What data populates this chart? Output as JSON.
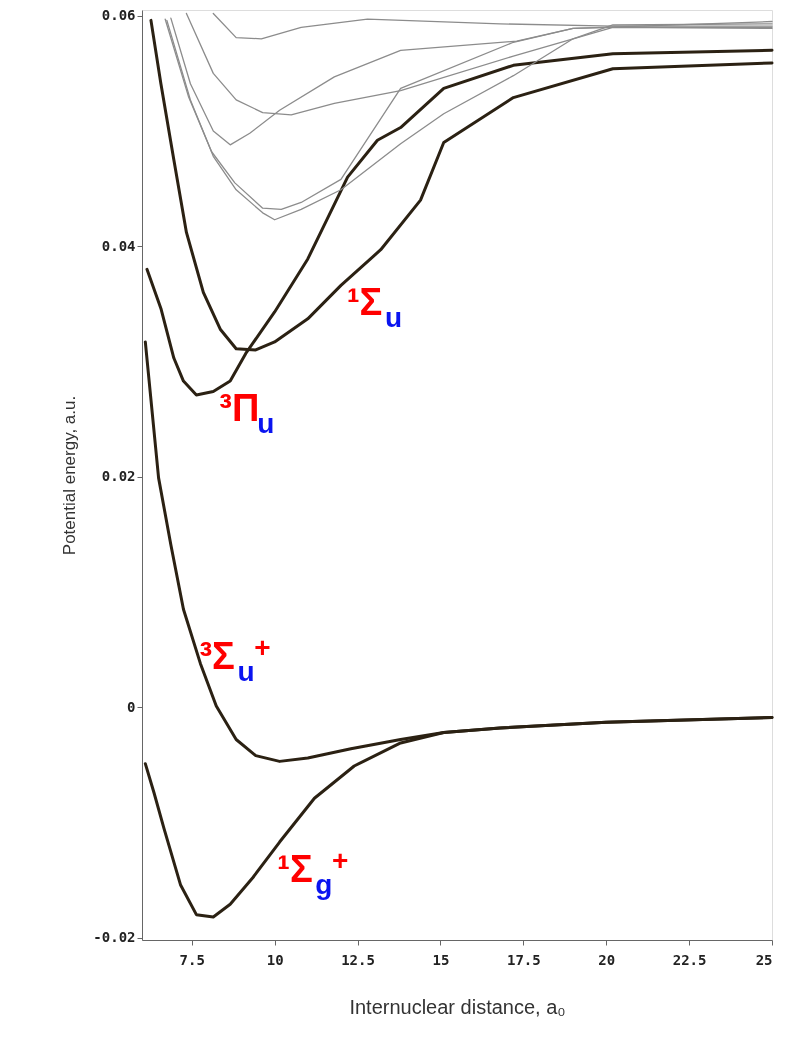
{
  "chart_data": {
    "type": "line",
    "xlabel": "Internuclear distance, a₀",
    "ylabel": "Potential energy, a.u.",
    "xlim": [
      6,
      25
    ],
    "ylim": [
      -0.0202,
      0.0605
    ],
    "xticks": [
      7.5,
      10,
      12.5,
      15,
      17.5,
      20,
      22.5,
      25
    ],
    "yticks": [
      -0.02,
      0,
      0.02,
      0.04,
      0.06
    ],
    "grid": false,
    "marker": "none",
    "line_style": "solid",
    "series": [
      {
        "color": "#2b2113",
        "x": [
          6.1,
          6.36,
          6.66,
          7.16,
          7.64,
          8.15,
          8.66,
          9.34,
          10.15,
          11.2,
          12.4,
          13.8,
          15.1,
          16.8,
          20,
          25
        ],
        "values": [
          -0.0049,
          -0.0074,
          -0.0105,
          -0.0154,
          -0.018,
          -0.0182,
          -0.0171,
          -0.0148,
          -0.0117,
          -0.0079,
          -0.0051,
          -0.0031,
          -0.0022,
          -0.0018,
          -0.0013,
          -0.0009
        ]
      },
      {
        "color": "#2b2113",
        "x": [
          6.1,
          6.5,
          6.87,
          7.25,
          7.76,
          8.24,
          8.84,
          9.43,
          10.15,
          11.0,
          12.3,
          13.8,
          15.1,
          16.8,
          20,
          25
        ],
        "values": [
          0.0317,
          0.0199,
          0.0141,
          0.0085,
          0.0038,
          0.0001,
          -0.0028,
          -0.0042,
          -0.0047,
          -0.0044,
          -0.0036,
          -0.0028,
          -0.0022,
          -0.0018,
          -0.0013,
          -0.0009
        ]
      },
      {
        "color": "#2b2113",
        "x": [
          6.15,
          6.57,
          6.96,
          7.25,
          7.64,
          8.15,
          8.66,
          9.13,
          10.0,
          11.0,
          12.2,
          13.1,
          13.8,
          15.1,
          17.2,
          20.2,
          25
        ],
        "values": [
          0.038,
          0.0346,
          0.0303,
          0.0283,
          0.0271,
          0.0274,
          0.0283,
          0.0307,
          0.0343,
          0.0389,
          0.046,
          0.0492,
          0.0503,
          0.0537,
          0.0557,
          0.0567,
          0.057
        ]
      },
      {
        "color": "#2b2113",
        "x": [
          6.27,
          6.57,
          6.96,
          7.34,
          7.85,
          8.36,
          8.84,
          9.43,
          10.0,
          11.0,
          12.0,
          13.2,
          14.4,
          15.1,
          17.2,
          20.2,
          25
        ],
        "values": [
          0.0596,
          0.0541,
          0.0475,
          0.0412,
          0.036,
          0.0328,
          0.0311,
          0.031,
          0.0317,
          0.0337,
          0.0366,
          0.0397,
          0.044,
          0.049,
          0.0529,
          0.0554,
          0.0559
        ]
      },
      {
        "color": "#8c8c8c",
        "x": [
          8.15,
          8.84,
          9.6,
          10.8,
          12.8,
          16.8,
          20.2,
          25
        ],
        "values": [
          0.0602,
          0.0581,
          0.058,
          0.059,
          0.0597,
          0.0593,
          0.0591,
          0.0591
        ]
      },
      {
        "color": "#8c8c8c",
        "x": [
          7.34,
          8.15,
          8.84,
          9.64,
          10.5,
          11.8,
          13.8,
          17.2,
          20.2,
          25
        ],
        "values": [
          0.0602,
          0.055,
          0.0527,
          0.0516,
          0.0514,
          0.0524,
          0.0535,
          0.0565,
          0.059,
          0.0589
        ]
      },
      {
        "color": "#8c8c8c",
        "x": [
          6.87,
          7.46,
          8.15,
          8.66,
          9.25,
          10.15,
          11.8,
          13.8,
          17.3,
          19,
          20.2,
          25
        ],
        "values": [
          0.0598,
          0.0541,
          0.05,
          0.0488,
          0.0498,
          0.0518,
          0.0547,
          0.057,
          0.0578,
          0.0589,
          0.059,
          0.059
        ]
      },
      {
        "color": "#8c8c8c",
        "x": [
          6.75,
          7.46,
          8.15,
          8.84,
          9.64,
          10.0,
          10.8,
          12.0,
          13.8,
          15.1,
          17.2,
          19,
          20.2,
          25
        ],
        "values": [
          0.0596,
          0.0527,
          0.0478,
          0.0449,
          0.0429,
          0.0423,
          0.0432,
          0.0449,
          0.0489,
          0.0515,
          0.0548,
          0.058,
          0.0592,
          0.0593
        ]
      },
      {
        "color": "#8c8c8c",
        "x": [
          6.7,
          7.4,
          8.1,
          8.8,
          9.64,
          10.2,
          10.8,
          12.0,
          13.8,
          17.2,
          19,
          25
        ],
        "values": [
          0.0597,
          0.053,
          0.0482,
          0.0455,
          0.0433,
          0.0432,
          0.0438,
          0.0458,
          0.0537,
          0.0577,
          0.0589,
          0.0595
        ]
      }
    ],
    "annotations": [
      {
        "text": "¹Σ$_{u}$",
        "x": 12.0,
        "y": 0.0366
      },
      {
        "text": "³Π$_{u}$",
        "x": 8.15,
        "y": 0.0274
      },
      {
        "text": "³Σ$_{u}$$^{+}$",
        "x": 7.55,
        "y": 0.0059
      },
      {
        "text": "¹Σ$_{g}$$^{+}$",
        "x": 9.9,
        "y": -0.0126
      }
    ]
  }
}
